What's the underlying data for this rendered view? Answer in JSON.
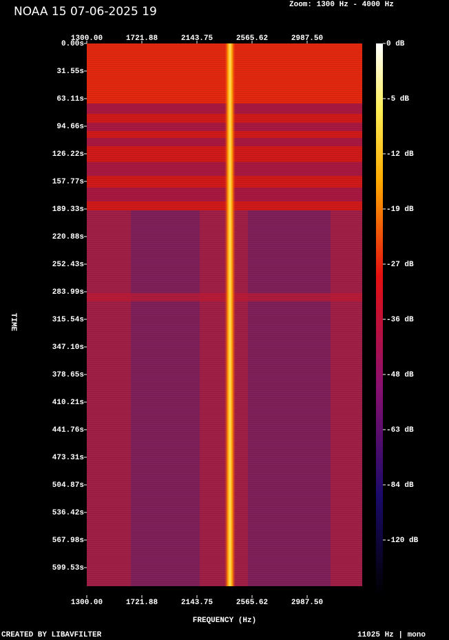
{
  "chart_data": {
    "type": "spectrogram",
    "title": "NOAA 15 07-06-2025 19",
    "subtitle": "Zoom: 1300 Hz - 4000 Hz",
    "x_label": "FREQUENCY (Hz)",
    "y_label": "TIME",
    "xlim": [
      1300,
      3409.375
    ],
    "xticks": [
      {
        "value": 1300,
        "label": "1300.00"
      },
      {
        "value": 1721.875,
        "label": "1721.88"
      },
      {
        "value": 2143.75,
        "label": "2143.75"
      },
      {
        "value": 2565.625,
        "label": "2565.62"
      },
      {
        "value": 2987.5,
        "label": "2987.50"
      }
    ],
    "ylim": [
      0,
      631.06
    ],
    "yticks": [
      {
        "value": 0,
        "label": "0.00s"
      },
      {
        "value": 31.55,
        "label": "31.55s"
      },
      {
        "value": 63.11,
        "label": "63.11s"
      },
      {
        "value": 94.66,
        "label": "94.66s"
      },
      {
        "value": 126.22,
        "label": "126.22s"
      },
      {
        "value": 157.77,
        "label": "157.77s"
      },
      {
        "value": 189.33,
        "label": "189.33s"
      },
      {
        "value": 220.88,
        "label": "220.88s"
      },
      {
        "value": 252.43,
        "label": "252.43s"
      },
      {
        "value": 283.99,
        "label": "283.99s"
      },
      {
        "value": 315.54,
        "label": "315.54s"
      },
      {
        "value": 347.1,
        "label": "347.10s"
      },
      {
        "value": 378.65,
        "label": "378.65s"
      },
      {
        "value": 410.21,
        "label": "410.21s"
      },
      {
        "value": 441.76,
        "label": "441.76s"
      },
      {
        "value": 473.31,
        "label": "473.31s"
      },
      {
        "value": 504.87,
        "label": "504.87s"
      },
      {
        "value": 536.42,
        "label": "536.42s"
      },
      {
        "value": 567.98,
        "label": "567.98s"
      },
      {
        "value": 599.53,
        "label": "599.53s"
      }
    ],
    "colorbar_ticks": [
      {
        "value": 0,
        "label": "0 dB"
      },
      {
        "value": -5,
        "label": "-5 dB"
      },
      {
        "value": -12,
        "label": "-12 dB"
      },
      {
        "value": -19,
        "label": "-19 dB"
      },
      {
        "value": -27,
        "label": "-27 dB"
      },
      {
        "value": -36,
        "label": "-36 dB"
      },
      {
        "value": -48,
        "label": "-48 dB"
      },
      {
        "value": -63,
        "label": "-63 dB"
      },
      {
        "value": -84,
        "label": "-84 dB"
      },
      {
        "value": -120,
        "label": "-120 dB"
      }
    ],
    "footer_left": "CREATED BY LIBAVFILTER",
    "footer_right": "11025 Hz | mono"
  }
}
